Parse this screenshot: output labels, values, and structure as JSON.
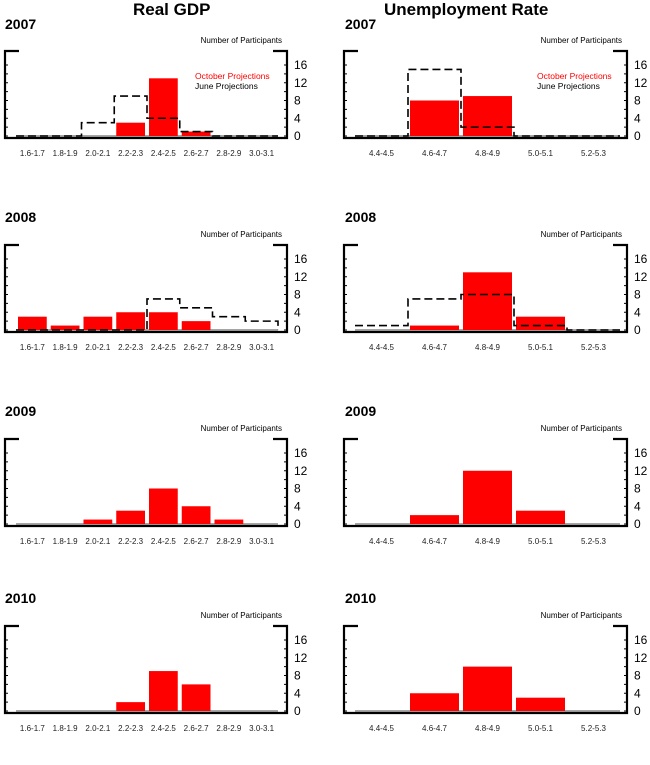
{
  "colors": {
    "october": "#ff0000",
    "june": "#000000",
    "axis": "#000000",
    "baseline": "#888888"
  },
  "columns": [
    {
      "title": "Real GDP"
    },
    {
      "title": "Unemployment Rate"
    }
  ],
  "chart_data": [
    {
      "type": "bar",
      "title": "Real GDP",
      "subtitle": "2007",
      "ylabel": "Number of Participants",
      "ylim": [
        0,
        16
      ],
      "yticks": [
        "16",
        "12",
        "8",
        "4",
        "0"
      ],
      "categories": [
        "1.6-1.7",
        "1.8-1.9",
        "2.0-2.1",
        "2.2-2.3",
        "2.4-2.5",
        "2.6-2.7",
        "2.8-2.9",
        "3.0-3.1"
      ],
      "series": [
        {
          "name": "October Projections",
          "style": "bar",
          "values": [
            0,
            0,
            0,
            3,
            13,
            1,
            0,
            0
          ]
        },
        {
          "name": "June Projections",
          "style": "dashed-step",
          "values": [
            0,
            0,
            3,
            9,
            4,
            1,
            0,
            0
          ]
        }
      ],
      "legend": [
        "October Projections",
        "June Projections"
      ],
      "legend_position": "top-right"
    },
    {
      "type": "bar",
      "title": "Unemployment Rate",
      "subtitle": "2007",
      "ylabel": "Number of Participants",
      "ylim": [
        0,
        16
      ],
      "yticks": [
        "16",
        "12",
        "8",
        "4",
        "0"
      ],
      "categories": [
        "4.4-4.5",
        "4.6-4.7",
        "4.8-4.9",
        "5.0-5.1",
        "5.2-5.3"
      ],
      "series": [
        {
          "name": "October Projections",
          "style": "bar",
          "values": [
            0,
            8,
            9,
            0,
            0
          ]
        },
        {
          "name": "June Projections",
          "style": "dashed-step",
          "values": [
            0,
            15,
            2,
            0,
            0
          ]
        }
      ],
      "legend": [
        "October Projections",
        "June Projections"
      ],
      "legend_position": "top-right"
    },
    {
      "type": "bar",
      "title": "Real GDP",
      "subtitle": "2008",
      "ylabel": "Number of Participants",
      "ylim": [
        0,
        16
      ],
      "yticks": [
        "16",
        "12",
        "8",
        "4",
        "0"
      ],
      "categories": [
        "1.6-1.7",
        "1.8-1.9",
        "2.0-2.1",
        "2.2-2.3",
        "2.4-2.5",
        "2.6-2.7",
        "2.8-2.9",
        "3.0-3.1"
      ],
      "series": [
        {
          "name": "October Projections",
          "style": "bar",
          "values": [
            3,
            1,
            3,
            4,
            4,
            2,
            0,
            0
          ]
        },
        {
          "name": "June Projections",
          "style": "dashed-step",
          "values": [
            0,
            0,
            0,
            0,
            7,
            5,
            3,
            2
          ]
        }
      ]
    },
    {
      "type": "bar",
      "title": "Unemployment Rate",
      "subtitle": "2008",
      "ylabel": "Number of Participants",
      "ylim": [
        0,
        16
      ],
      "yticks": [
        "16",
        "12",
        "8",
        "4",
        "0"
      ],
      "categories": [
        "4.4-4.5",
        "4.6-4.7",
        "4.8-4.9",
        "5.0-5.1",
        "5.2-5.3"
      ],
      "series": [
        {
          "name": "October Projections",
          "style": "bar",
          "values": [
            0,
            1,
            13,
            3,
            0
          ]
        },
        {
          "name": "June Projections",
          "style": "dashed-step",
          "values": [
            1,
            7,
            8,
            1,
            0
          ]
        }
      ]
    },
    {
      "type": "bar",
      "title": "Real GDP",
      "subtitle": "2009",
      "ylabel": "Number of Participants",
      "ylim": [
        0,
        16
      ],
      "yticks": [
        "16",
        "12",
        "8",
        "4",
        "0"
      ],
      "categories": [
        "1.6-1.7",
        "1.8-1.9",
        "2.0-2.1",
        "2.2-2.3",
        "2.4-2.5",
        "2.6-2.7",
        "2.8-2.9",
        "3.0-3.1"
      ],
      "series": [
        {
          "name": "October Projections",
          "style": "bar",
          "values": [
            0,
            0,
            1,
            3,
            8,
            4,
            1,
            0
          ]
        }
      ]
    },
    {
      "type": "bar",
      "title": "Unemployment Rate",
      "subtitle": "2009",
      "ylabel": "Number of Participants",
      "ylim": [
        0,
        16
      ],
      "yticks": [
        "16",
        "12",
        "8",
        "4",
        "0"
      ],
      "categories": [
        "4.4-4.5",
        "4.6-4.7",
        "4.8-4.9",
        "5.0-5.1",
        "5.2-5.3"
      ],
      "series": [
        {
          "name": "October Projections",
          "style": "bar",
          "values": [
            0,
            2,
            12,
            3,
            0
          ]
        }
      ]
    },
    {
      "type": "bar",
      "title": "Real GDP",
      "subtitle": "2010",
      "ylabel": "Number of Participants",
      "ylim": [
        0,
        16
      ],
      "yticks": [
        "16",
        "12",
        "8",
        "4",
        "0"
      ],
      "categories": [
        "1.6-1.7",
        "1.8-1.9",
        "2.0-2.1",
        "2.2-2.3",
        "2.4-2.5",
        "2.6-2.7",
        "2.8-2.9",
        "3.0-3.1"
      ],
      "series": [
        {
          "name": "October Projections",
          "style": "bar",
          "values": [
            0,
            0,
            0,
            2,
            9,
            6,
            0,
            0
          ]
        }
      ]
    },
    {
      "type": "bar",
      "title": "Unemployment Rate",
      "subtitle": "2010",
      "ylabel": "Number of Participants",
      "ylim": [
        0,
        16
      ],
      "yticks": [
        "16",
        "12",
        "8",
        "4",
        "0"
      ],
      "categories": [
        "4.4-4.5",
        "4.6-4.7",
        "4.8-4.9",
        "5.0-5.1",
        "5.2-5.3"
      ],
      "series": [
        {
          "name": "October Projections",
          "style": "bar",
          "values": [
            0,
            4,
            10,
            3,
            0
          ]
        }
      ]
    }
  ]
}
